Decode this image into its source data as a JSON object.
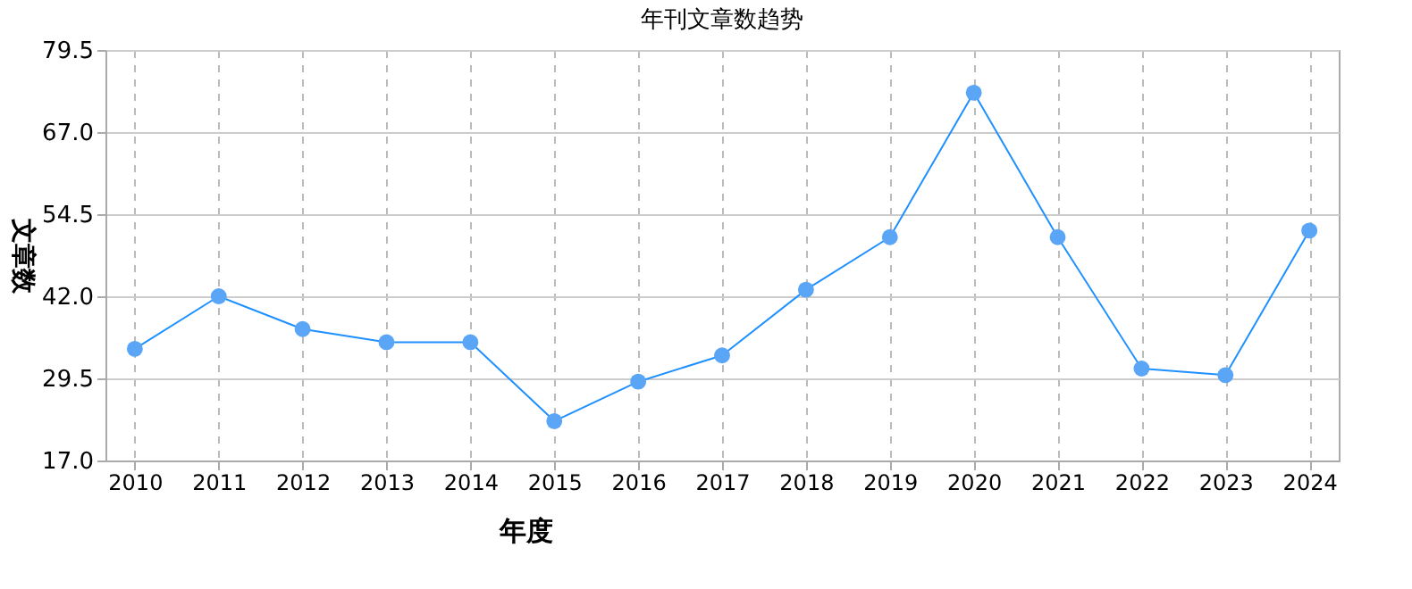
{
  "chart_data": {
    "type": "line",
    "title": "年刊文章数趋势",
    "xlabel": "年度",
    "ylabel": "文章数",
    "categories": [
      "2010",
      "2011",
      "2012",
      "2013",
      "2014",
      "2015",
      "2016",
      "2017",
      "2018",
      "2019",
      "2020",
      "2021",
      "2022",
      "2023",
      "2024"
    ],
    "series": [
      {
        "color": "#1e90ff",
        "values": [
          34,
          42,
          37,
          35,
          35,
          23,
          29,
          33,
          43,
          51,
          73,
          51,
          31,
          30,
          52
        ]
      }
    ],
    "ylim": [
      17.0,
      79.5
    ],
    "yticks": [
      {
        "value": 17,
        "label": "17.0"
      },
      29.5,
      {
        "value": 42,
        "label": "42.0"
      },
      54.5,
      {
        "value": 67,
        "label": "67.0"
      },
      79.5
    ],
    "grid": true,
    "marker": "circle",
    "line_style": "solid"
  }
}
